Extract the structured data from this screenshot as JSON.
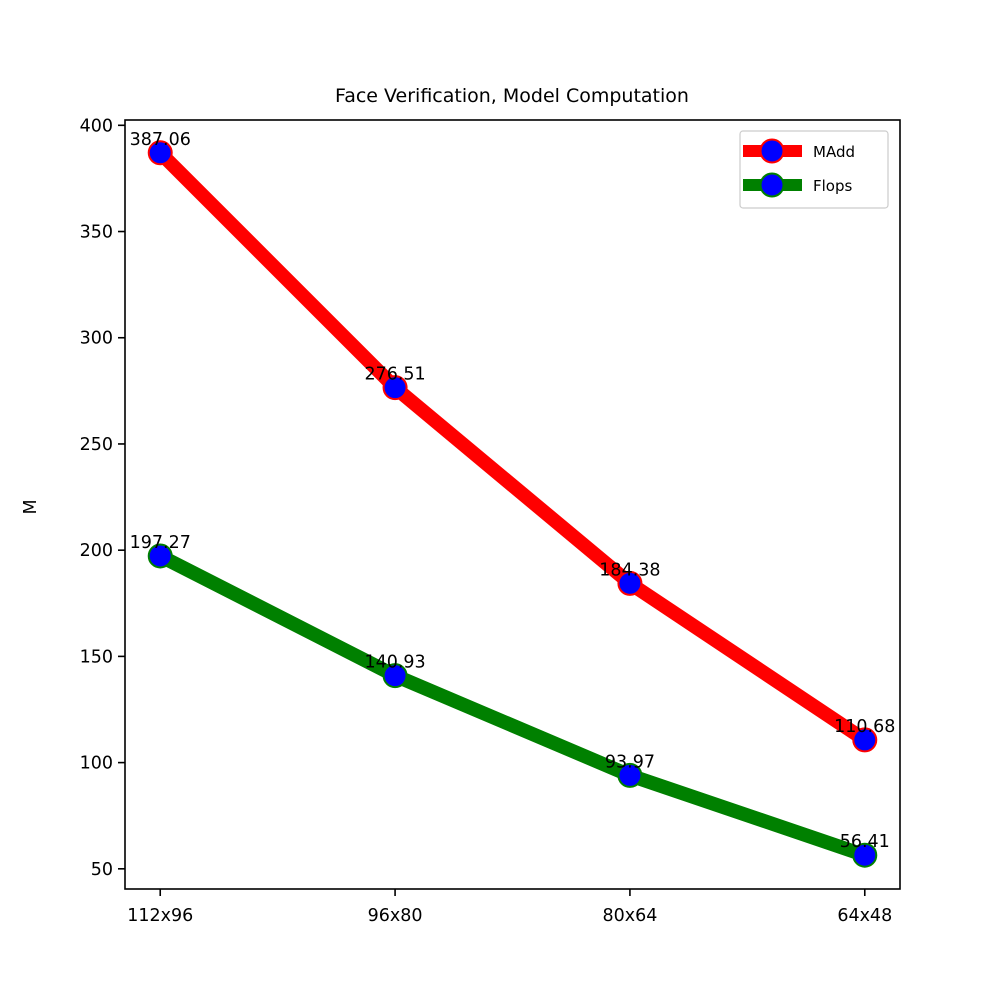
{
  "chart_data": {
    "type": "line",
    "title": "Face Verification, Model Computation",
    "xlabel": "",
    "ylabel": "M",
    "categories": [
      "112x96",
      "96x80",
      "80x64",
      "64x48"
    ],
    "ylim": [
      40.5,
      402.5
    ],
    "yticks": [
      50,
      100,
      150,
      200,
      250,
      300,
      350,
      400
    ],
    "grid": false,
    "legend_position": "top-right",
    "series": [
      {
        "name": "MAdd",
        "values": [
          387.06,
          276.51,
          184.38,
          110.68
        ],
        "data_labels": [
          "387.06",
          "276.51",
          "184.38",
          "110.68"
        ],
        "line_color": "#ff0000",
        "marker_face": "#0000ff",
        "marker_edge": "#ff0000"
      },
      {
        "name": "Flops",
        "values": [
          197.27,
          140.93,
          93.97,
          56.41
        ],
        "data_labels": [
          "197.27",
          "140.93",
          "93.97",
          "56.41"
        ],
        "line_color": "#008000",
        "marker_face": "#0000ff",
        "marker_edge": "#008000"
      }
    ]
  }
}
